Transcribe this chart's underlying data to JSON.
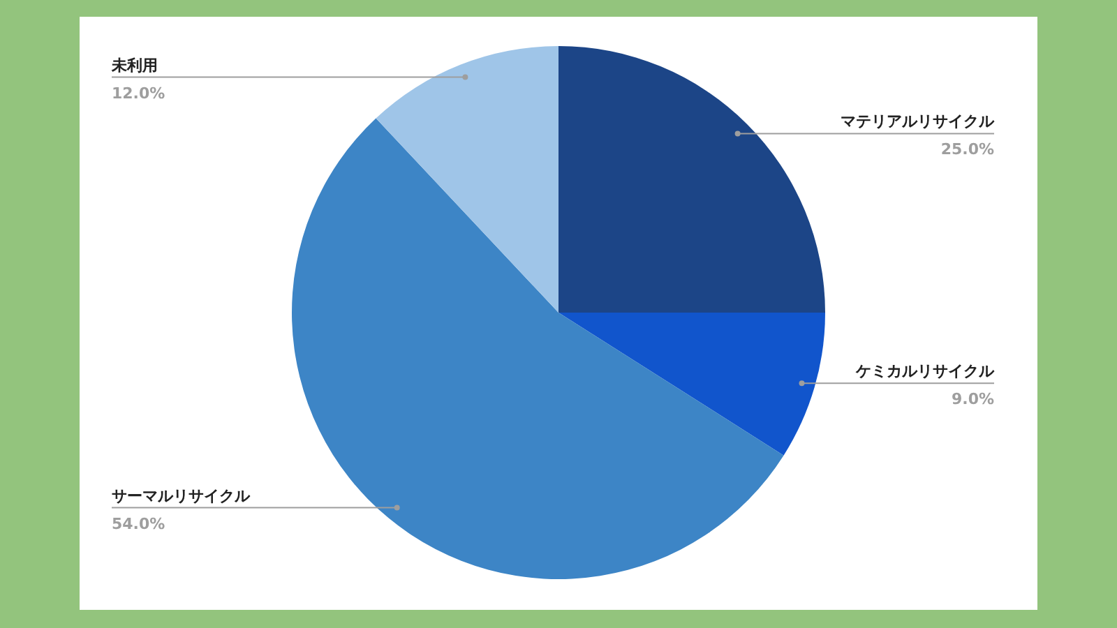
{
  "chart_data": {
    "type": "pie",
    "categories": [
      "マテリアルリサイクル",
      "ケミカルリサイクル",
      "サーマルリサイクル",
      "未利用"
    ],
    "values": [
      25,
      9,
      54,
      12
    ],
    "colors": [
      "#1c4587",
      "#1155cc",
      "#3d85c6",
      "#9fc5e8"
    ],
    "value_labels": [
      "25.0%",
      "9.0%",
      "54.0%",
      "12.0%"
    ]
  }
}
